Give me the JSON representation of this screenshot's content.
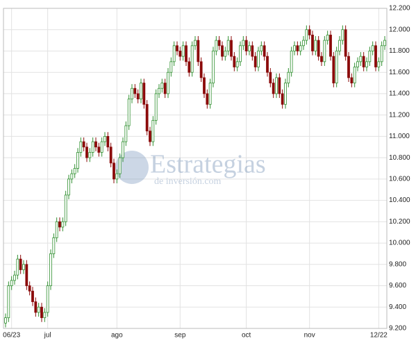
{
  "chart_data": {
    "type": "candlestick",
    "watermark": {
      "title": "Estrategias",
      "subtitle": "de inversión.com"
    },
    "categories": [
      null,
      null,
      "06/23",
      null,
      null,
      null,
      null,
      null,
      null,
      null,
      null,
      null,
      null,
      null,
      "jul",
      null,
      null,
      null,
      null,
      null,
      null,
      null,
      null,
      null,
      null,
      null,
      null,
      null,
      null,
      null,
      null,
      null,
      null,
      null,
      null,
      null,
      null,
      "ago",
      null,
      null,
      null,
      null,
      null,
      null,
      null,
      null,
      null,
      null,
      null,
      null,
      null,
      null,
      null,
      null,
      null,
      null,
      null,
      null,
      "sep",
      null,
      null,
      null,
      null,
      null,
      null,
      null,
      null,
      null,
      null,
      null,
      null,
      null,
      null,
      null,
      null,
      null,
      null,
      null,
      null,
      null,
      "oct",
      null,
      null,
      null,
      null,
      null,
      null,
      null,
      null,
      null,
      null,
      null,
      null,
      null,
      null,
      null,
      null,
      null,
      null,
      null,
      null,
      "nov",
      null,
      null,
      null,
      null,
      null,
      null,
      null,
      null,
      null,
      null,
      null,
      null,
      null,
      null,
      null,
      null,
      null,
      null,
      null,
      null,
      null,
      null,
      "12/22",
      null,
      null
    ],
    "open": [
      9250,
      9300,
      9600,
      9650,
      9700,
      9850,
      9750,
      9800,
      9600,
      9550,
      9450,
      9350,
      9400,
      9300,
      9350,
      9600,
      9900,
      10050,
      10200,
      10150,
      10200,
      10450,
      10600,
      10650,
      10700,
      10850,
      10950,
      10900,
      10800,
      10850,
      10950,
      10900,
      10850,
      10950,
      11000,
      10900,
      10750,
      10600,
      10650,
      10800,
      10950,
      11100,
      11350,
      11450,
      11400,
      11350,
      11500,
      11300,
      11050,
      10950,
      11150,
      11400,
      11450,
      11500,
      11400,
      11600,
      11700,
      11850,
      11800,
      11750,
      11850,
      11700,
      11600,
      11850,
      11900,
      11700,
      11550,
      11400,
      11300,
      11500,
      11800,
      11900,
      11850,
      11750,
      11800,
      11900,
      11750,
      11650,
      11700,
      11850,
      11900,
      11800,
      11850,
      11750,
      11650,
      11800,
      11850,
      11750,
      11600,
      11500,
      11400,
      11550,
      11400,
      11300,
      11500,
      11600,
      11800,
      11850,
      11800,
      11850,
      11900,
      12000,
      11950,
      11800,
      11900,
      11750,
      11700,
      11900,
      11950,
      11750,
      11500,
      11800,
      11900,
      12000,
      11750,
      11550,
      11500,
      11650,
      11700,
      11750,
      11650,
      11700,
      11800,
      11850,
      11650,
      11700,
      11850
    ],
    "high": [
      9340,
      9640,
      9690,
      9740,
      9890,
      9890,
      9840,
      9840,
      9640,
      9590,
      9490,
      9440,
      9440,
      9390,
      9640,
      9940,
      10090,
      10240,
      10240,
      10240,
      10490,
      10640,
      10690,
      10740,
      10890,
      10990,
      10990,
      10940,
      10890,
      10990,
      10990,
      10940,
      10990,
      11040,
      11040,
      10940,
      10790,
      10690,
      10840,
      10990,
      11140,
      11390,
      11490,
      11490,
      11440,
      11540,
      11540,
      11340,
      11090,
      11190,
      11440,
      11490,
      11540,
      11540,
      11640,
      11740,
      11890,
      11890,
      11840,
      11890,
      11890,
      11740,
      11890,
      11940,
      11940,
      11740,
      11590,
      11440,
      11540,
      11840,
      11940,
      11940,
      11890,
      11840,
      11940,
      11940,
      11790,
      11740,
      11890,
      11940,
      11940,
      11890,
      11890,
      11790,
      11840,
      11890,
      11890,
      11790,
      11640,
      11540,
      11590,
      11590,
      11440,
      11540,
      11640,
      11840,
      11890,
      11890,
      11890,
      11940,
      12040,
      12040,
      11990,
      11940,
      11940,
      11790,
      11940,
      11990,
      11990,
      11790,
      11840,
      11940,
      12040,
      12040,
      11790,
      11590,
      11690,
      11740,
      11790,
      11790,
      11740,
      11840,
      11890,
      11890,
      11740,
      11890,
      11940
    ],
    "low": [
      9210,
      9260,
      9560,
      9610,
      9660,
      9710,
      9710,
      9560,
      9510,
      9410,
      9310,
      9310,
      9260,
      9260,
      9310,
      9560,
      9860,
      10010,
      10110,
      10110,
      10160,
      10410,
      10560,
      10610,
      10660,
      10810,
      10860,
      10760,
      10760,
      10810,
      10860,
      10810,
      10810,
      10910,
      10860,
      10710,
      10560,
      10560,
      10610,
      10760,
      10910,
      11060,
      11310,
      11360,
      11310,
      11310,
      11260,
      11010,
      10910,
      10910,
      11110,
      11360,
      11410,
      11360,
      11360,
      11560,
      11660,
      11760,
      11710,
      11710,
      11660,
      11560,
      11560,
      11810,
      11660,
      11510,
      11360,
      11260,
      11260,
      11460,
      11760,
      11810,
      11710,
      11710,
      11760,
      11710,
      11610,
      11610,
      11660,
      11810,
      11760,
      11760,
      11710,
      11610,
      11610,
      11760,
      11710,
      11560,
      11460,
      11360,
      11360,
      11360,
      11260,
      11260,
      11460,
      11560,
      11760,
      11760,
      11760,
      11810,
      11860,
      11910,
      11760,
      11760,
      11710,
      11660,
      11660,
      11860,
      11710,
      11460,
      11460,
      11760,
      11860,
      11710,
      11510,
      11460,
      11460,
      11610,
      11660,
      11610,
      11610,
      11660,
      11760,
      11610,
      11610,
      11660,
      11810
    ],
    "close": [
      9300,
      9600,
      9650,
      9700,
      9850,
      9750,
      9800,
      9600,
      9550,
      9450,
      9350,
      9400,
      9300,
      9350,
      9600,
      9900,
      10050,
      10200,
      10150,
      10200,
      10450,
      10600,
      10650,
      10700,
      10850,
      10950,
      10900,
      10800,
      10850,
      10950,
      10900,
      10850,
      10950,
      11000,
      10900,
      10750,
      10600,
      10650,
      10800,
      10950,
      11100,
      11350,
      11450,
      11400,
      11350,
      11500,
      11300,
      11050,
      10950,
      11150,
      11400,
      11450,
      11500,
      11400,
      11600,
      11700,
      11850,
      11800,
      11750,
      11850,
      11700,
      11600,
      11850,
      11900,
      11700,
      11550,
      11400,
      11300,
      11500,
      11800,
      11900,
      11850,
      11750,
      11800,
      11900,
      11750,
      11650,
      11700,
      11850,
      11900,
      11800,
      11850,
      11750,
      11650,
      11800,
      11850,
      11750,
      11600,
      11500,
      11400,
      11550,
      11400,
      11300,
      11500,
      11600,
      11800,
      11850,
      11800,
      11850,
      11900,
      12000,
      11950,
      11800,
      11900,
      11750,
      11700,
      11900,
      11950,
      11750,
      11500,
      11800,
      11900,
      12000,
      11750,
      11550,
      11500,
      11650,
      11700,
      11750,
      11650,
      11700,
      11800,
      11850,
      11650,
      11700,
      11850,
      11900
    ],
    "up_color": "#2f8f2f",
    "down_color": "#8b0a0a",
    "ylim": [
      9200,
      12200
    ],
    "yticks": [
      {
        "value": 9200,
        "label": "9.200"
      },
      {
        "value": 9400,
        "label": "9.400"
      },
      {
        "value": 9600,
        "label": "9.600"
      },
      {
        "value": 9800,
        "label": "9.800"
      },
      {
        "value": 10000,
        "label": "10.000"
      },
      {
        "value": 10200,
        "label": "10.200"
      },
      {
        "value": 10400,
        "label": "10.400"
      },
      {
        "value": 10600,
        "label": "10.600"
      },
      {
        "value": 10800,
        "label": "10.800"
      },
      {
        "value": 11000,
        "label": "11.000"
      },
      {
        "value": 11200,
        "label": "11.200"
      },
      {
        "value": 11400,
        "label": "11.400"
      },
      {
        "value": 11600,
        "label": "11.600"
      },
      {
        "value": 11800,
        "label": "11.800"
      },
      {
        "value": 12000,
        "label": "12.000"
      },
      {
        "value": 12200,
        "label": "12.200"
      }
    ],
    "grid": true
  }
}
